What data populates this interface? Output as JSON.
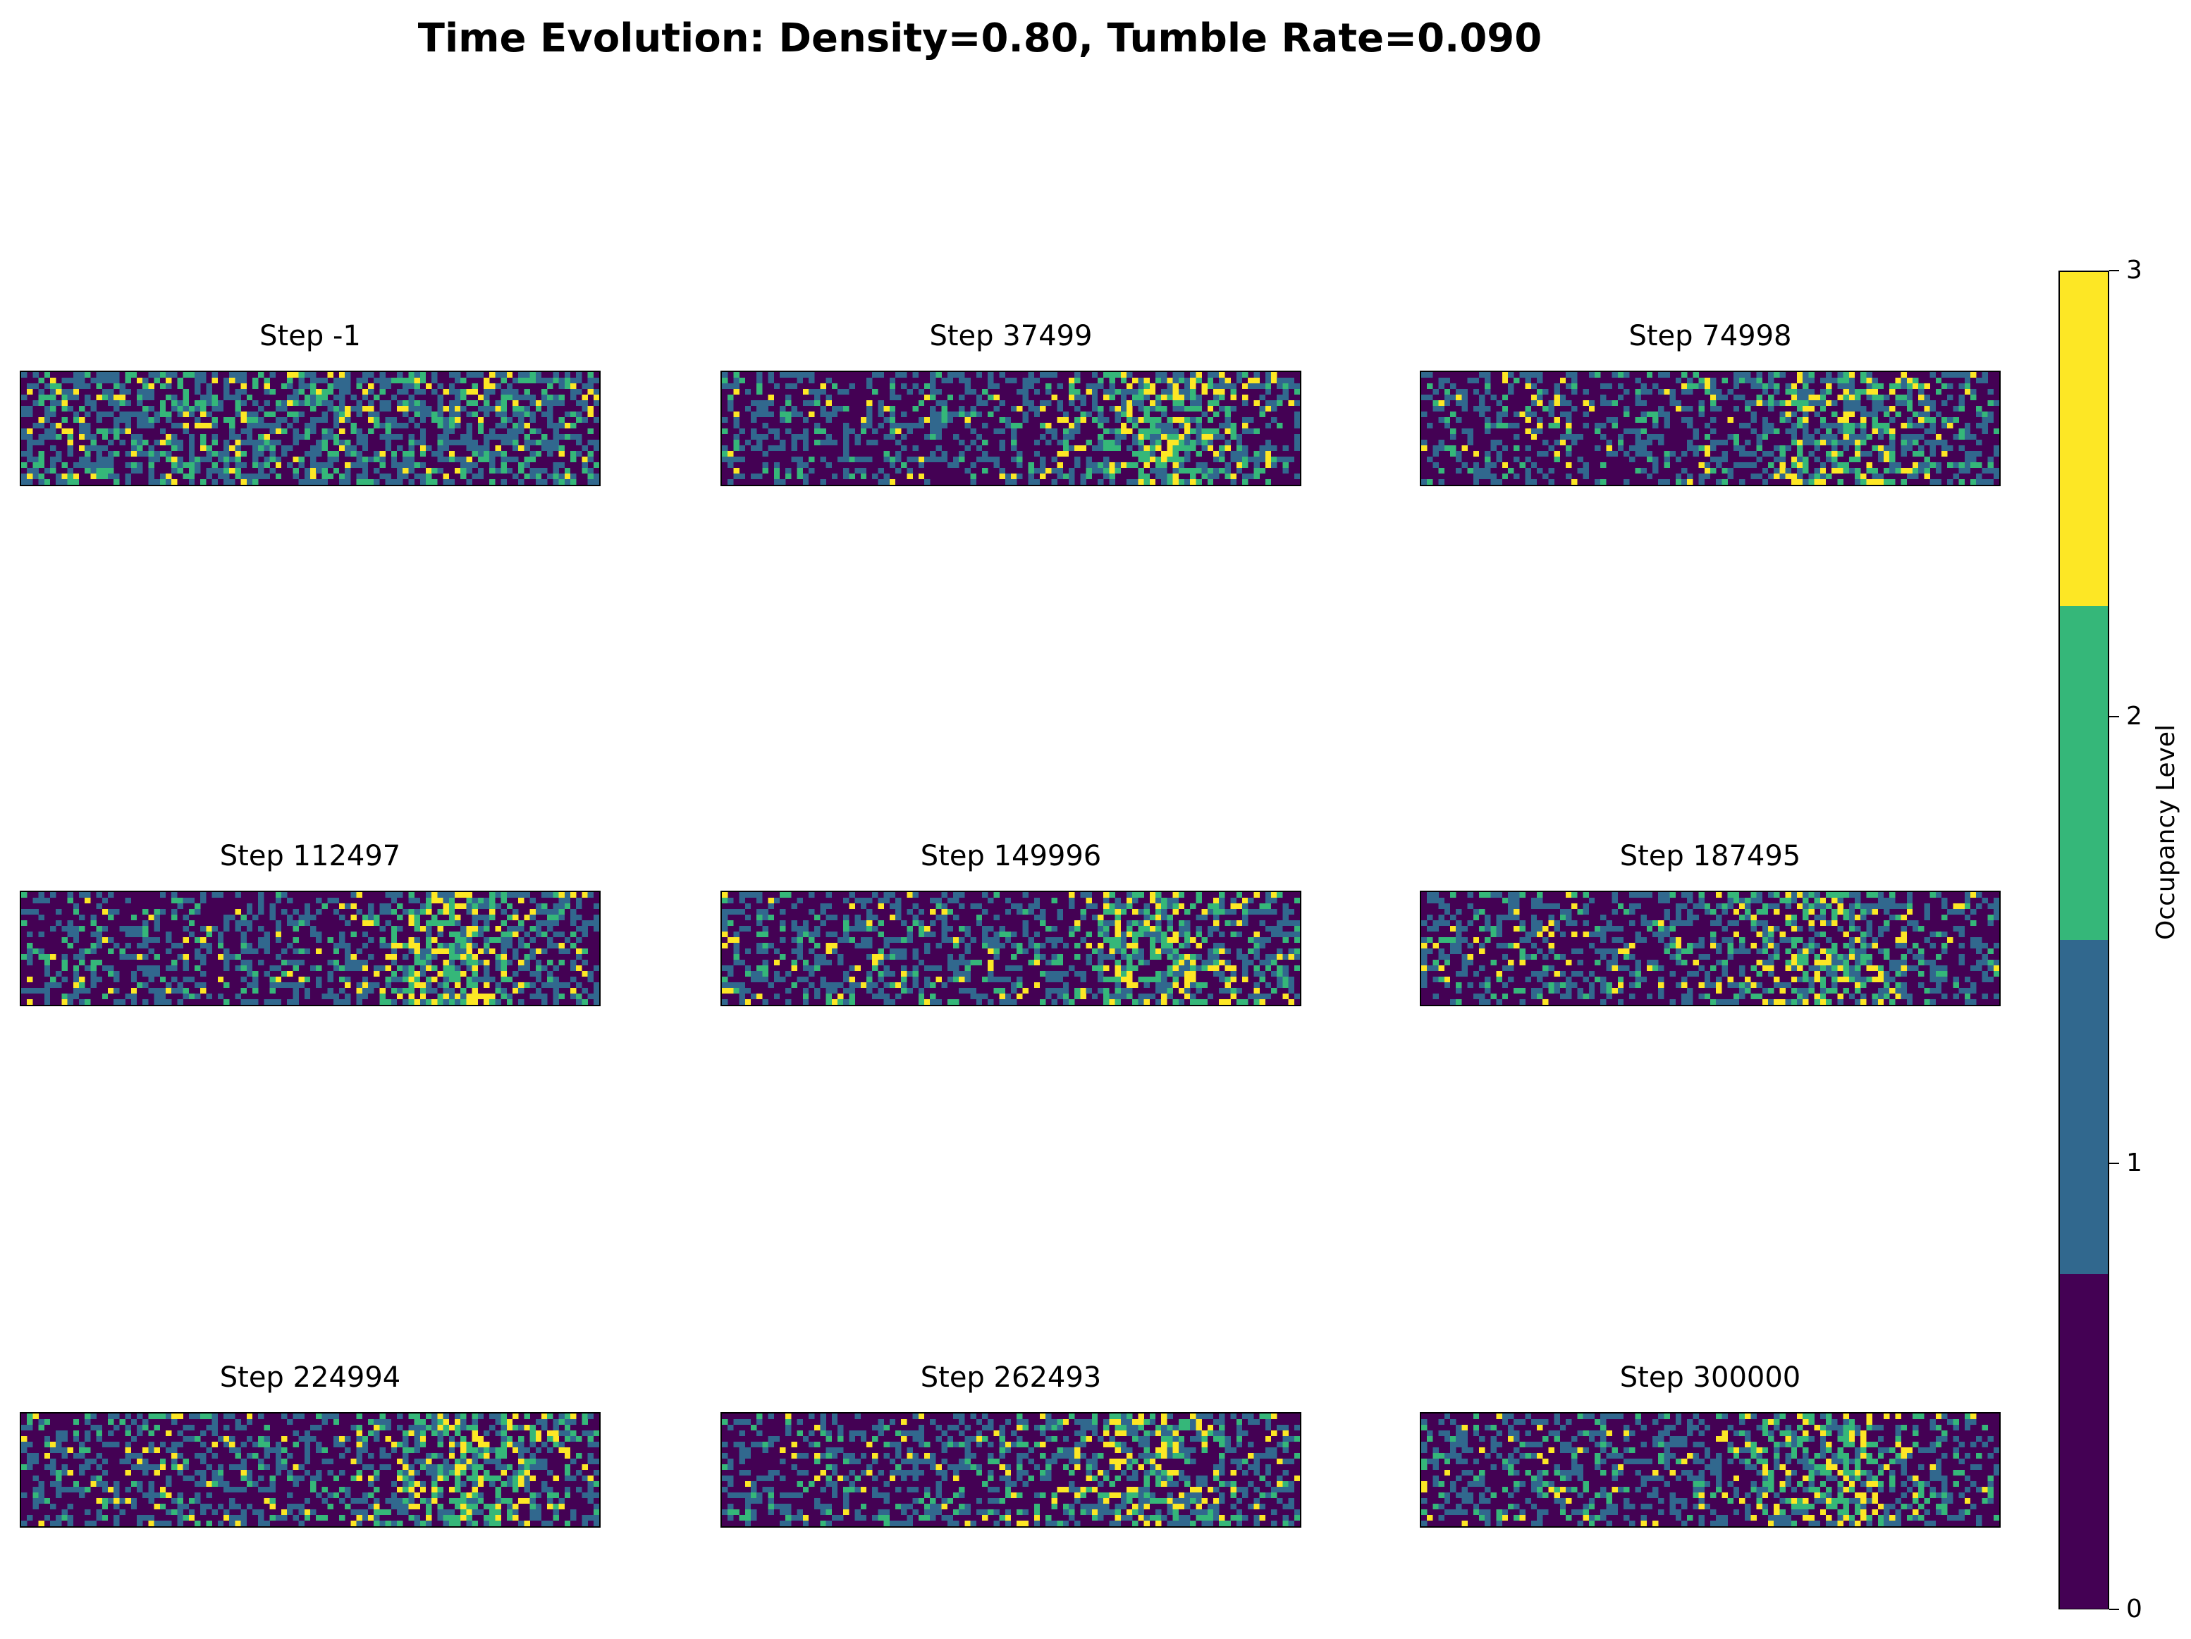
{
  "suptitle": "Time Evolution: Density=0.80, Tumble Rate=0.090",
  "chart_data": {
    "type": "heatmap",
    "grid": {
      "rows": 20,
      "cols": 100
    },
    "panels": [
      {
        "title": "Step -1",
        "cluster_center": null,
        "cluster_strength": 0.0
      },
      {
        "title": "Step 37499",
        "cluster_center": 0.78,
        "cluster_strength": 0.75
      },
      {
        "title": "Step 74998",
        "cluster_center": 0.74,
        "cluster_strength": 0.7
      },
      {
        "title": "Step 112497",
        "cluster_center": 0.75,
        "cluster_strength": 0.75
      },
      {
        "title": "Step 149996",
        "cluster_center": 0.74,
        "cluster_strength": 0.65
      },
      {
        "title": "Step 187495",
        "cluster_center": 0.7,
        "cluster_strength": 0.55
      },
      {
        "title": "Step 224994",
        "cluster_center": 0.76,
        "cluster_strength": 0.75
      },
      {
        "title": "Step 262493",
        "cluster_center": 0.72,
        "cluster_strength": 0.6
      },
      {
        "title": "Step 300000",
        "cluster_center": 0.7,
        "cluster_strength": 0.55
      }
    ],
    "colorbar": {
      "label": "Occupancy Level",
      "range": [
        0,
        3
      ],
      "ticks": [
        "0",
        "1",
        "2",
        "3"
      ],
      "levels": [
        0,
        1,
        2,
        3
      ],
      "colors": [
        "#440154",
        "#31688e",
        "#35b779",
        "#fde725"
      ]
    }
  }
}
